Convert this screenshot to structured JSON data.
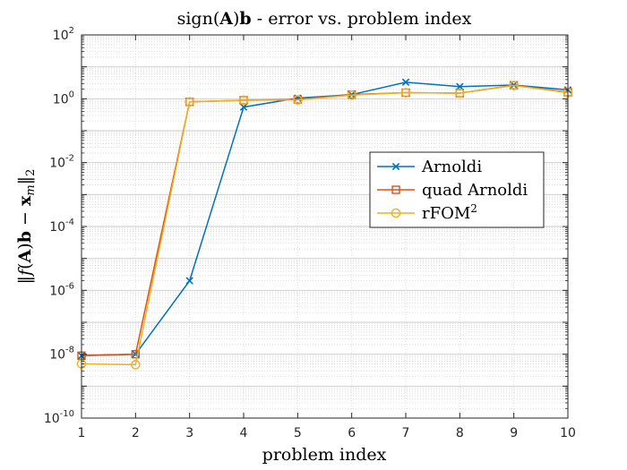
{
  "chart_data": {
    "type": "line",
    "title": "sign(A)b - error vs. problem index",
    "title_parts": {
      "pre": "sign(",
      "bold1": "A",
      "mid": ")",
      "bold2": "b",
      "post": " - error vs. problem index"
    },
    "xlabel": "problem index",
    "ylabel": "||f(A)b − x_m||_2",
    "ylabel_parts": {
      "open": "‖",
      "f": "f",
      "lp": "(",
      "A": "A",
      "rp": ")",
      "b": "b",
      "minus": " − ",
      "x": "x",
      "m": "m",
      "close": "‖",
      "sub": "2"
    },
    "yscale": "log",
    "xlim": [
      1,
      10
    ],
    "ylim_exp": [
      -10,
      2
    ],
    "grid": true,
    "x_ticks": [
      1,
      2,
      3,
      4,
      5,
      6,
      7,
      8,
      9,
      10
    ],
    "y_tick_exps": [
      -10,
      -8,
      -6,
      -4,
      -2,
      0,
      2
    ],
    "y_tick_base": "10",
    "legend_position": "center-right",
    "x": [
      1,
      2,
      3,
      4,
      5,
      6,
      7,
      8,
      9,
      10
    ],
    "series": [
      {
        "name": "Arnoldi",
        "color": "#0072BD",
        "marker": "x",
        "values": [
          9e-09,
          1e-08,
          2e-06,
          0.55,
          1.05,
          1.35,
          3.3,
          2.4,
          2.7,
          1.9
        ]
      },
      {
        "name": "quad Arnoldi",
        "color": "#D95319",
        "marker": "square",
        "values": [
          9e-09,
          1e-08,
          0.8,
          0.9,
          0.95,
          1.35,
          1.55,
          1.5,
          2.65,
          1.6
        ]
      },
      {
        "name": "rFOM",
        "name_sup": "2",
        "color": "#EDB120",
        "marker": "circle",
        "values": [
          5e-09,
          4.7e-09,
          0.8,
          0.9,
          0.92,
          1.3,
          1.55,
          1.5,
          2.6,
          1.55
        ]
      }
    ]
  }
}
